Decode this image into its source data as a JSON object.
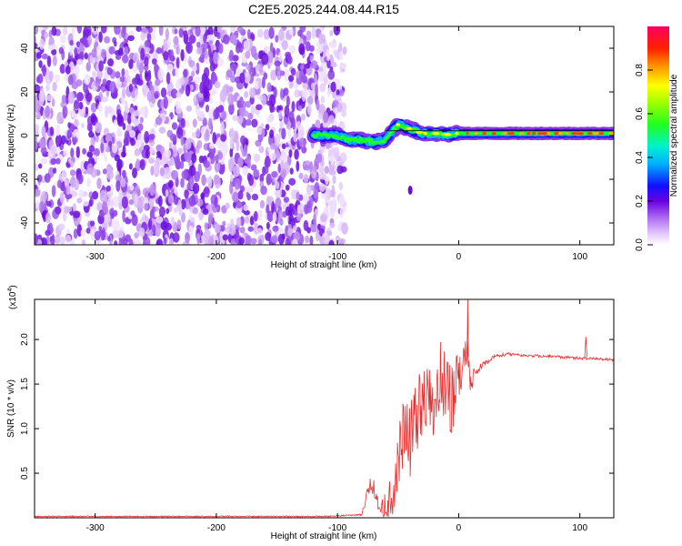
{
  "chart_data": [
    {
      "type": "heatmap",
      "title": "C2E5.2025.244.08.44.R15",
      "xlabel": "Height of straight line (km)",
      "ylabel": "Frequency (Hz)",
      "xlim": [
        -350,
        128
      ],
      "ylim": [
        -50,
        50
      ],
      "xticks": [
        -300,
        -200,
        -100,
        0,
        100
      ],
      "yticks": [
        -40,
        -20,
        0,
        20,
        40
      ],
      "noise_region_km": [
        -350,
        -100
      ],
      "signal_track": {
        "x": [
          -120,
          -100,
          -90,
          -80,
          -70,
          -60,
          -55,
          -50,
          -45,
          -40,
          -35,
          -30,
          -20,
          -10,
          0,
          20,
          50,
          80,
          100,
          128
        ],
        "freq_hz": [
          0,
          0,
          -2,
          -2,
          -3,
          -2,
          2,
          5,
          4,
          3,
          2,
          1,
          1,
          0.5,
          1,
          1,
          1,
          1,
          1,
          1
        ]
      },
      "secondary_blob": {
        "x": -40,
        "freq_hz": -25
      },
      "colorbar": {
        "label": "Normalized spectral amplitude",
        "range": [
          0,
          1
        ],
        "ticks": [
          "0.0",
          "0.2",
          "0.4",
          "0.6",
          "0.8"
        ]
      }
    },
    {
      "type": "line",
      "xlabel": "Height of straight line (km)",
      "ylabel": "SNR (10 * v/v)",
      "multiplier": "(x10",
      "multiplier_exp": "4",
      "xlim": [
        -350,
        128
      ],
      "ylim": [
        0,
        2.45
      ],
      "xticks": [
        -300,
        -200,
        -100,
        0,
        100
      ],
      "yticks": [
        "0.5",
        "1.0",
        "1.5",
        "2.0"
      ],
      "series": [
        {
          "name": "SNR",
          "color": "#e83030",
          "envelope_x": [
            -350,
            -110,
            -80,
            -75,
            -72,
            -68,
            -65,
            -60,
            -55,
            -50,
            -45,
            -40,
            -35,
            -30,
            -25,
            -20,
            -15,
            -10,
            -5,
            0,
            5,
            8,
            10,
            15,
            20,
            25,
            30,
            40,
            50,
            60,
            80,
            100,
            110,
            128
          ],
          "envelope_y": [
            0.02,
            0.02,
            0.04,
            0.35,
            0.5,
            0.3,
            0.1,
            0.3,
            0.5,
            0.9,
            1.3,
            1.2,
            1.5,
            1.7,
            1.6,
            1.5,
            1.9,
            1.7,
            1.6,
            1.8,
            2.1,
            1.9,
            1.6,
            1.7,
            1.75,
            1.8,
            1.83,
            1.85,
            1.84,
            1.83,
            1.82,
            1.8,
            1.8,
            1.78
          ],
          "noise_amplitude": [
            0.01,
            0.01,
            0.01,
            0.1,
            0.15,
            0.1,
            0.08,
            0.25,
            0.35,
            0.45,
            0.5,
            0.6,
            0.6,
            0.55,
            0.55,
            0.6,
            0.6,
            0.55,
            0.5,
            0.5,
            0.3,
            0.25,
            0.2,
            0.08,
            0.05,
            0.04,
            0.03,
            0.02,
            0.02,
            0.02,
            0.02,
            0.02,
            0.02,
            0.02
          ]
        }
      ]
    }
  ]
}
